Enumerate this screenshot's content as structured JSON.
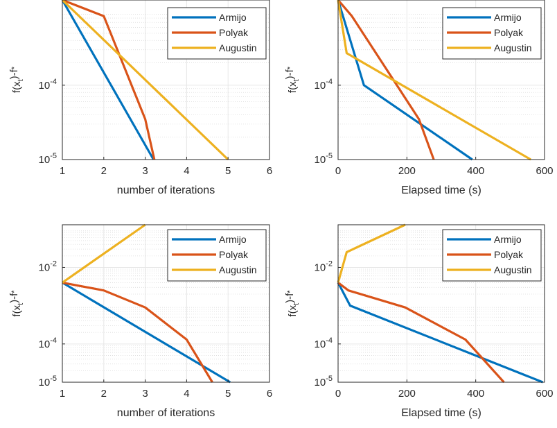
{
  "colors": {
    "Armijo": "#0072bd",
    "Polyak": "#d95319",
    "Augustin": "#edb120"
  },
  "chart_data": [
    {
      "type": "line",
      "yscale": "log",
      "grid": true,
      "minor_grid": true,
      "legend_position": "top-right",
      "xlabel": "number of iterations",
      "ylabel": "f(x_t)-f*",
      "xlim": [
        1,
        6
      ],
      "ylim": [
        1e-05,
        0.0014
      ],
      "xticks": [
        "1",
        "2",
        "3",
        "4",
        "5",
        "6"
      ],
      "yticks": [
        {
          "value": 0.0001,
          "label": "10",
          "exp": "-4"
        },
        {
          "value": 1e-05,
          "label": "10",
          "exp": "-5"
        }
      ],
      "series": [
        {
          "name": "Armijo",
          "x": [
            1,
            3.2
          ],
          "y": [
            0.0014,
            1e-05
          ]
        },
        {
          "name": "Polyak",
          "x": [
            1,
            2,
            3,
            3.22
          ],
          "y": [
            0.0014,
            0.00085,
            3.5e-05,
            1e-05
          ]
        },
        {
          "name": "Augustin",
          "x": [
            1,
            5
          ],
          "y": [
            0.0014,
            1e-05
          ]
        }
      ]
    },
    {
      "type": "line",
      "yscale": "log",
      "grid": true,
      "minor_grid": true,
      "legend_position": "top-right",
      "xlabel": "Elapsed time (s)",
      "ylabel": "f(x_t)-f*",
      "xlim": [
        0,
        600
      ],
      "ylim": [
        1e-05,
        0.0014
      ],
      "xticks": [
        "0",
        "200",
        "400",
        "600"
      ],
      "yticks": [
        {
          "value": 0.0001,
          "label": "10",
          "exp": "-4"
        },
        {
          "value": 1e-05,
          "label": "10",
          "exp": "-5"
        }
      ],
      "series": [
        {
          "name": "Armijo",
          "x": [
            0,
            75,
            390
          ],
          "y": [
            0.0014,
            0.0001,
            1e-05
          ]
        },
        {
          "name": "Polyak",
          "x": [
            0,
            40,
            235,
            278
          ],
          "y": [
            0.0014,
            0.00085,
            3.5e-05,
            1e-05
          ]
        },
        {
          "name": "Augustin",
          "x": [
            0,
            25,
            560
          ],
          "y": [
            0.0014,
            0.00027,
            1e-05
          ]
        }
      ]
    },
    {
      "type": "line",
      "yscale": "log",
      "grid": true,
      "minor_grid": true,
      "legend_position": "top-right",
      "xlabel": "number of iterations",
      "ylabel": "f(x_t)-f*",
      "xlim": [
        1,
        6
      ],
      "ylim": [
        1e-05,
        0.13
      ],
      "xticks": [
        "1",
        "2",
        "3",
        "4",
        "5",
        "6"
      ],
      "yticks": [
        {
          "value": 0.01,
          "label": "10",
          "exp": "-2"
        },
        {
          "value": 0.0001,
          "label": "10",
          "exp": "-4"
        },
        {
          "value": 1e-05,
          "label": "10",
          "exp": "-5"
        }
      ],
      "series": [
        {
          "name": "Armijo",
          "x": [
            1,
            5.05
          ],
          "y": [
            0.004,
            1e-05
          ]
        },
        {
          "name": "Polyak",
          "x": [
            1,
            2,
            3,
            4,
            4.62
          ],
          "y": [
            0.004,
            0.0025,
            0.0009,
            0.00013,
            1e-05
          ]
        },
        {
          "name": "Augustin",
          "x": [
            1,
            3
          ],
          "y": [
            0.004,
            0.13
          ]
        }
      ]
    },
    {
      "type": "line",
      "yscale": "log",
      "grid": true,
      "minor_grid": true,
      "legend_position": "top-right",
      "xlabel": "Elapsed time (s)",
      "ylabel": "f(x_t)-f*",
      "xlim": [
        0,
        600
      ],
      "ylim": [
        1e-05,
        0.13
      ],
      "xticks": [
        "0",
        "200",
        "400",
        "600"
      ],
      "yticks": [
        {
          "value": 0.01,
          "label": "10",
          "exp": "-2"
        },
        {
          "value": 0.0001,
          "label": "10",
          "exp": "-4"
        },
        {
          "value": 1e-05,
          "label": "10",
          "exp": "-5"
        }
      ],
      "series": [
        {
          "name": "Armijo",
          "x": [
            0,
            35,
            595
          ],
          "y": [
            0.004,
            0.001,
            1e-05
          ]
        },
        {
          "name": "Polyak",
          "x": [
            0,
            30,
            195,
            370,
            482
          ],
          "y": [
            0.004,
            0.0025,
            0.0009,
            0.00013,
            1e-05
          ]
        },
        {
          "name": "Augustin",
          "x": [
            0,
            25,
            195
          ],
          "y": [
            0.004,
            0.025,
            0.13
          ]
        }
      ]
    }
  ]
}
